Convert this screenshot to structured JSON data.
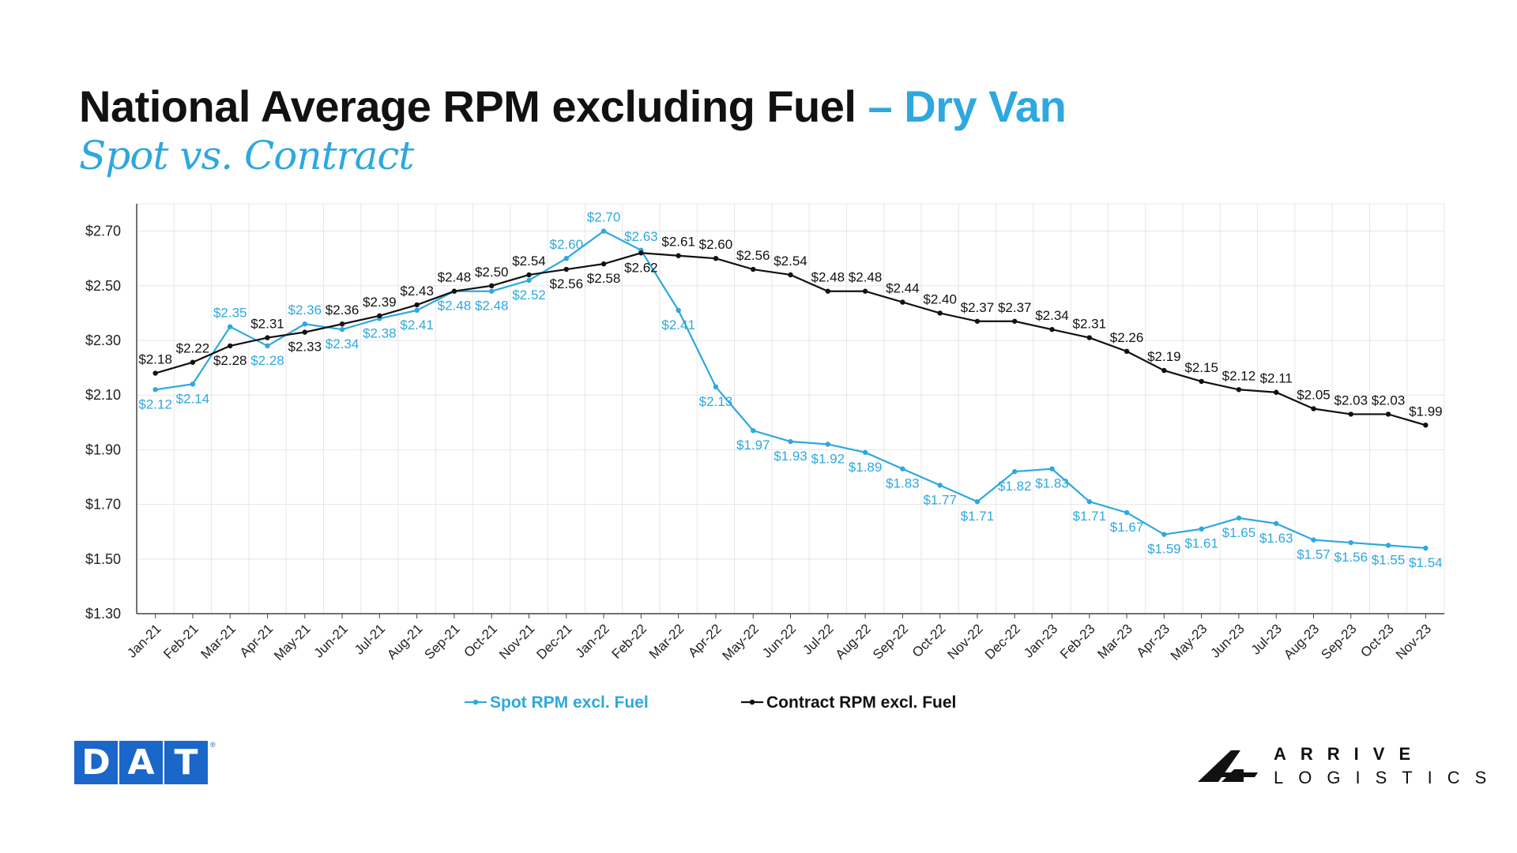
{
  "header": {
    "title_main": "National Average RPM excluding Fuel",
    "title_accent": "– Dry Van",
    "subtitle": "Spot vs. Contract"
  },
  "logos": {
    "dat_letters": [
      "D",
      "A",
      "T"
    ],
    "dat_reg": "®",
    "arrive_line1": "ARRIVE",
    "arrive_line2": "LOGISTICS"
  },
  "colors": {
    "spot": "#2ea8df",
    "contract": "#111111",
    "grid": "#e6e6e6",
    "dat_blue": "#1a66c9"
  },
  "chart_data": {
    "type": "line",
    "categories": [
      "Jan-21",
      "Feb-21",
      "Mar-21",
      "Apr-21",
      "May-21",
      "Jun-21",
      "Jul-21",
      "Aug-21",
      "Sep-21",
      "Oct-21",
      "Nov-21",
      "Dec-21",
      "Jan-22",
      "Feb-22",
      "Mar-22",
      "Apr-22",
      "May-22",
      "Jun-22",
      "Jul-22",
      "Aug-22",
      "Sep-22",
      "Oct-22",
      "Nov-22",
      "Dec-22",
      "Jan-23",
      "Feb-23",
      "Mar-23",
      "Apr-23",
      "May-23",
      "Jun-23",
      "Jul-23",
      "Aug-23",
      "Sep-23",
      "Oct-23",
      "Nov-23"
    ],
    "series": [
      {
        "name": "Spot RPM excl. Fuel",
        "color": "#2ea8df",
        "values": [
          2.12,
          2.14,
          2.35,
          2.28,
          2.36,
          2.34,
          2.38,
          2.41,
          2.48,
          2.48,
          2.52,
          2.6,
          2.7,
          2.63,
          2.41,
          2.13,
          1.97,
          1.93,
          1.92,
          1.89,
          1.83,
          1.77,
          1.71,
          1.82,
          1.83,
          1.71,
          1.67,
          1.59,
          1.61,
          1.65,
          1.63,
          1.57,
          1.56,
          1.55,
          1.54
        ]
      },
      {
        "name": "Contract RPM excl. Fuel",
        "color": "#111111",
        "values": [
          2.18,
          2.22,
          2.28,
          2.31,
          2.33,
          2.36,
          2.39,
          2.43,
          2.48,
          2.5,
          2.54,
          2.56,
          2.58,
          2.62,
          2.61,
          2.6,
          2.56,
          2.54,
          2.48,
          2.48,
          2.44,
          2.4,
          2.37,
          2.37,
          2.34,
          2.31,
          2.26,
          2.19,
          2.15,
          2.12,
          2.11,
          2.05,
          2.03,
          2.03,
          1.99
        ]
      }
    ],
    "y_ticks": [
      "$2.70",
      "$2.50",
      "$2.30",
      "$2.10",
      "$1.90",
      "$1.70",
      "$1.50",
      "$1.30"
    ],
    "ylim": [
      1.3,
      2.8
    ],
    "grid": true,
    "legend_position": "bottom"
  }
}
